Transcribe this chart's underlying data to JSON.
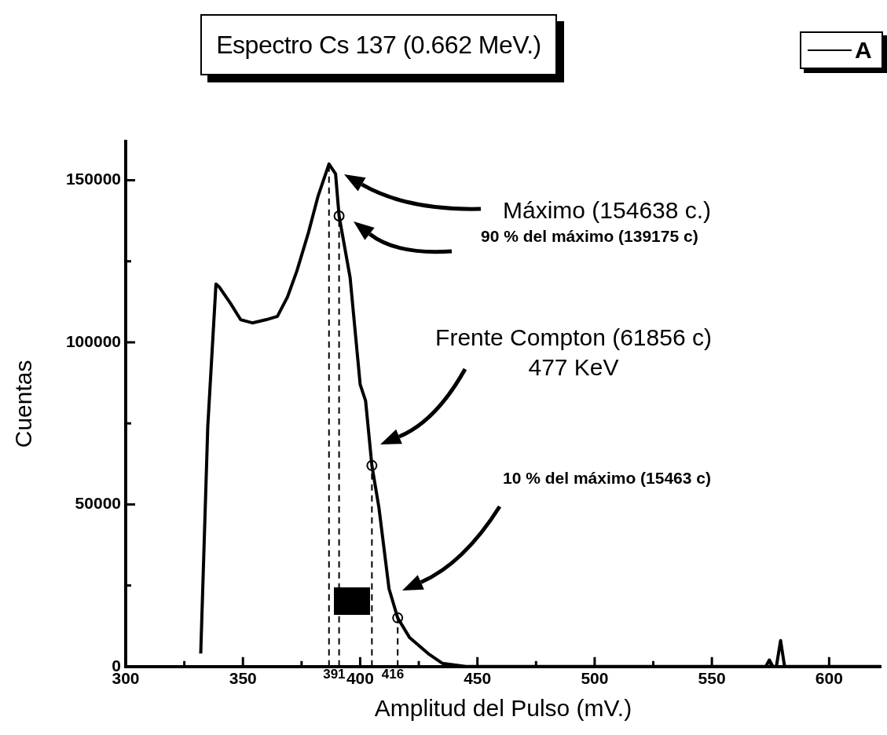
{
  "chart_data": {
    "type": "line",
    "title": "Espectro Cs 137 (0.662 MeV.)",
    "xlabel": "Amplitud del Pulso (mV.)",
    "ylabel": "Cuentas",
    "legend": "top right",
    "grid": false,
    "marker": "none",
    "line_style": "solid",
    "xlim": [
      300,
      622
    ],
    "ylim": [
      0,
      162000
    ],
    "xticks": [
      300,
      {
        "value": 325,
        "label": null
      },
      350,
      {
        "value": 375,
        "label": null
      },
      400,
      {
        "value": 425,
        "label": null
      },
      450,
      {
        "value": 475,
        "label": null
      },
      500,
      {
        "value": 525,
        "label": null
      },
      550,
      {
        "value": 575,
        "label": null
      },
      600
    ],
    "yticks": [
      0,
      {
        "value": 25000,
        "label": null
      },
      50000,
      {
        "value": 75000,
        "label": null
      },
      100000,
      {
        "value": 125000,
        "label": null
      },
      150000
    ],
    "series": [
      {
        "name": "A",
        "color": "#000000",
        "x": [
          332,
          335,
          338.5,
          340,
          344.7,
          349,
          354,
          360,
          364.7,
          369,
          373,
          378,
          382,
          386.7,
          389.5,
          391,
          395.7,
          400,
          402.3,
          405,
          408,
          412.3,
          416,
          421,
          429,
          435,
          445,
          500,
          560,
          573,
          574.5,
          576,
          577.5,
          579.3,
          581,
          622
        ],
        "values": [
          4000,
          74000,
          118000,
          117000,
          112000,
          107000,
          106000,
          107000,
          108000,
          114000,
          122000,
          134000,
          145000,
          155000,
          152000,
          139000,
          120000,
          87000,
          82000,
          62000,
          49000,
          24000,
          15000,
          9000,
          4000,
          1000,
          0,
          0,
          0,
          0,
          2000,
          0,
          0,
          8000,
          0,
          0
        ]
      },
      {
        "type": "scatter",
        "color": "#000000",
        "marker": "circle",
        "x": [
          391,
          405,
          416
        ],
        "values": [
          139000,
          62000,
          15000
        ]
      }
    ],
    "ref_lines": [
      {
        "axis": "x",
        "value": 386.7,
        "label": null,
        "line_style": "dashed"
      },
      {
        "axis": "x",
        "value": 391,
        "label": "391",
        "line_style": "dashed"
      },
      {
        "axis": "x",
        "value": 405,
        "label": null,
        "line_style": "dashed"
      },
      {
        "axis": "x",
        "value": 416,
        "label": "416",
        "line_style": "dashed"
      }
    ],
    "annotations": [
      "Máximo (154638 c.)",
      "90 % del máximo (139175 c)",
      "Frente Compton (61856 c)\n477 KeV",
      "10 % del máximo (15463 c)"
    ]
  }
}
